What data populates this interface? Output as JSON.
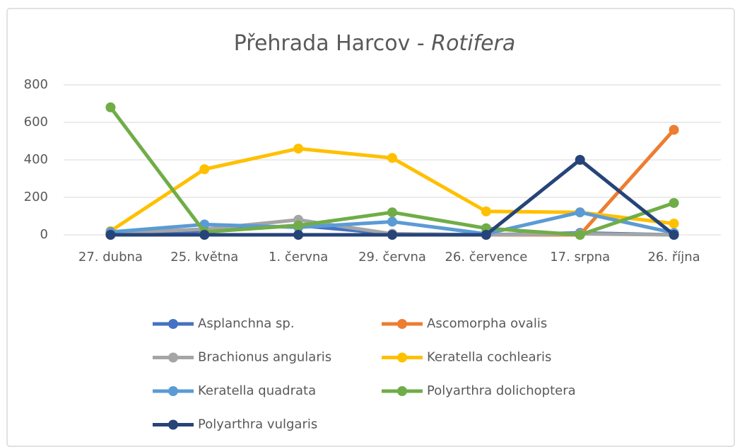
{
  "chart_data": {
    "type": "line",
    "title": "Přehrada Harcov - ",
    "title_italic": "Rotifera",
    "categories": [
      "27. dubna",
      "25. května",
      "1. června",
      "29. června",
      "26. července",
      "17. srpna",
      "26. října"
    ],
    "series": [
      {
        "name": "Asplanchna sp.",
        "color": "#4472c4",
        "values": [
          10,
          20,
          50,
          5,
          0,
          10,
          0
        ]
      },
      {
        "name": "Ascomorpha ovalis",
        "color": "#ed7d31",
        "values": [
          0,
          0,
          0,
          0,
          0,
          0,
          560
        ]
      },
      {
        "name": "Brachionus angularis",
        "color": "#a5a5a5",
        "values": [
          10,
          30,
          80,
          5,
          0,
          5,
          0
        ]
      },
      {
        "name": "Keratella cochlearis",
        "color": "#ffc000",
        "values": [
          20,
          350,
          460,
          410,
          125,
          120,
          60
        ]
      },
      {
        "name": "Keratella quadrata",
        "color": "#5b9bd5",
        "values": [
          15,
          55,
          40,
          70,
          5,
          120,
          10
        ]
      },
      {
        "name": "Polyarthra dolichoptera",
        "color": "#70ad47",
        "values": [
          680,
          15,
          50,
          120,
          35,
          0,
          170
        ]
      },
      {
        "name": "Polyarthra vulgaris",
        "color": "#264478",
        "values": [
          0,
          0,
          0,
          0,
          0,
          400,
          0
        ]
      }
    ],
    "ylim": [
      0,
      800
    ],
    "yticks": [
      0,
      200,
      400,
      600,
      800
    ],
    "grid": true,
    "legend": "bottom"
  }
}
